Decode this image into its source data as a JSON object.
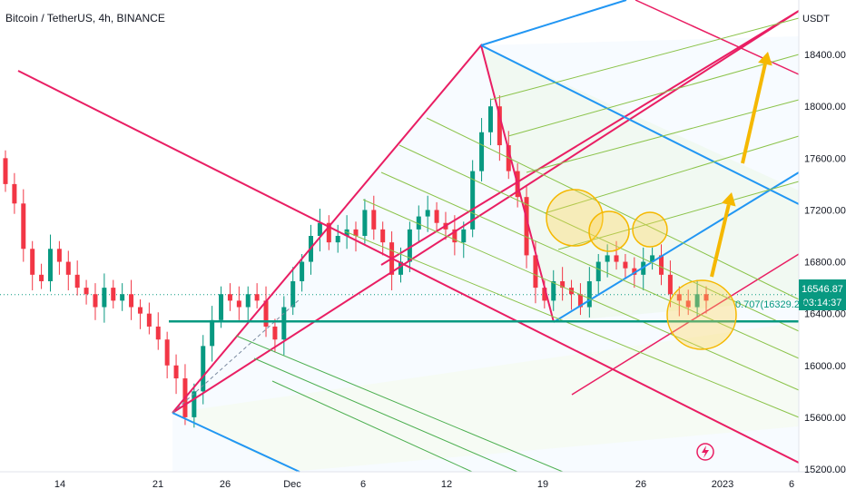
{
  "chart_data": {
    "type": "candlestick",
    "title": "Bitcoin / TetherUS, 4h, BINANCE",
    "currency_label": "USDT",
    "y_axis": {
      "min": 15200,
      "max": 18800,
      "tick_values": [
        15200,
        15600,
        16000,
        16400,
        16800,
        17200,
        17600,
        18000,
        18400
      ],
      "tick_labels": [
        "15200.00",
        "15600.00",
        "16000.00",
        "16400.00",
        "16800.00",
        "17200.00",
        "17600.00",
        "18000.00",
        "18400.00"
      ]
    },
    "x_axis": {
      "tick_labels": [
        "14",
        "21",
        "26",
        "Dec",
        "6",
        "12",
        "19",
        "26",
        "2023",
        "6"
      ]
    },
    "last_price": {
      "value": "16546.87",
      "countdown": "03:14:37"
    },
    "fib_label": {
      "text": "0.707(16329.20)",
      "value": 16329.2
    },
    "support_level": 16340,
    "candles_4h_approx_closes": [
      17400,
      17250,
      16900,
      16700,
      16650,
      16900,
      16800,
      16700,
      16600,
      16550,
      16450,
      16600,
      16500,
      16550,
      16450,
      16400,
      16300,
      16200,
      16000,
      15900,
      15600,
      15800,
      16150,
      16350,
      16550,
      16500,
      16450,
      16550,
      16500,
      16300,
      16200,
      16450,
      16650,
      16800,
      17000,
      17100,
      16950,
      17000,
      17050,
      17000,
      17200,
      17050,
      16950,
      16700,
      16800,
      17050,
      17150,
      17200,
      17100,
      17050,
      16950,
      17050,
      17500,
      17800,
      18000,
      17700,
      17500,
      17300,
      16850,
      16600,
      16500,
      16650,
      16600,
      16550,
      16450,
      16650,
      16800,
      16850,
      16800,
      16750,
      16700,
      16800,
      16850,
      16700,
      16550,
      16500,
      16450,
      16550,
      16500
    ],
    "colors": {
      "up": "#089981",
      "down": "#f23645",
      "pitchfork_outer": "#e91e63",
      "pitchfork_blue": "#2196f3",
      "support_line": "#089981",
      "arrow": "#f5b800",
      "highlight_circle": "#ffd54f"
    }
  },
  "icons": {
    "alert": "lightning-alert-icon"
  }
}
